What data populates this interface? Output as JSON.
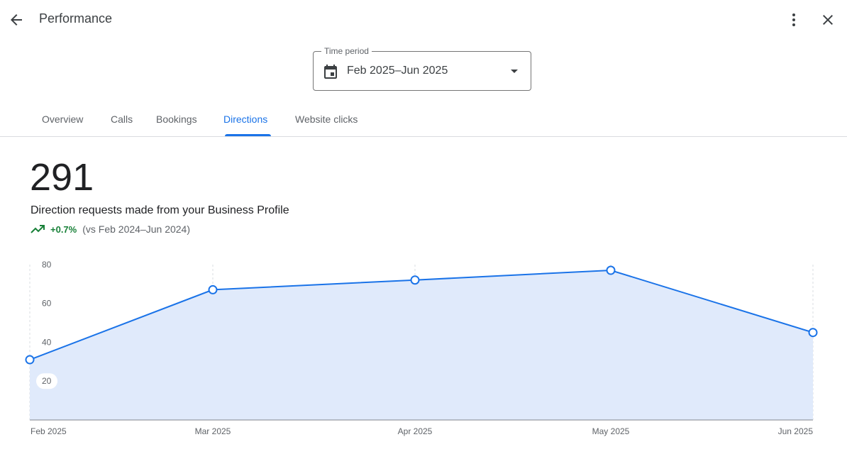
{
  "header": {
    "title": "Performance",
    "back_icon": "arrow-back-icon",
    "more_icon": "more-vert-icon",
    "close_icon": "close-icon"
  },
  "time_period": {
    "label": "Time period",
    "value": "Feb 2025–Jun 2025",
    "icon": "calendar-icon"
  },
  "tabs": [
    {
      "label": "Overview",
      "active": false
    },
    {
      "label": "Calls",
      "active": false
    },
    {
      "label": "Bookings",
      "active": false
    },
    {
      "label": "Directions",
      "active": true
    },
    {
      "label": "Website clicks",
      "active": false
    }
  ],
  "metric": {
    "value": "291",
    "description": "Direction requests made from your Business Profile",
    "change": "+0.7%",
    "comparison": "(vs Feb 2024–Jun 2024)"
  },
  "colors": {
    "accent": "#1a73e8",
    "positive": "#188038",
    "area_fill": "#e0eafb"
  },
  "chart_data": {
    "type": "area",
    "x": [
      "Feb 2025",
      "Mar 2025",
      "Apr 2025",
      "May 2025",
      "Jun 2025"
    ],
    "values": [
      31,
      67,
      72,
      77,
      45
    ],
    "yticks": [
      20,
      40,
      60,
      80
    ],
    "ylim": [
      0,
      80
    ]
  }
}
